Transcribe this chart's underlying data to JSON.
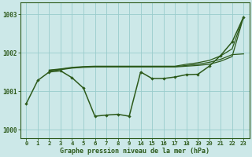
{
  "bg_color": "#cce8e8",
  "grid_color": "#99cccc",
  "line_color": "#2d5a1b",
  "xlabel": "Graphe pression niveau de la mer (hPa)",
  "ylim": [
    999.78,
    1003.3
  ],
  "yticks": [
    1000,
    1001,
    1002,
    1003
  ],
  "xticks": [
    0,
    1,
    2,
    3,
    4,
    5,
    6,
    7,
    8,
    9,
    14,
    15,
    16,
    17,
    18,
    19,
    20,
    21,
    22,
    23
  ],
  "line1_x": [
    0,
    1,
    2,
    3,
    4,
    5,
    6,
    7,
    8,
    9,
    14,
    15,
    16,
    17,
    18,
    19,
    20,
    21,
    22,
    23
  ],
  "line1_y": [
    1000.68,
    1001.28,
    1001.5,
    1001.53,
    1001.35,
    1001.08,
    1000.35,
    1000.38,
    1000.4,
    1000.35,
    1001.5,
    1001.33,
    1001.33,
    1001.37,
    1001.43,
    1001.44,
    1001.65,
    1001.93,
    1002.28,
    1002.93
  ],
  "line2_x": [
    2,
    3,
    4,
    5,
    6,
    7,
    8,
    9,
    14,
    15,
    16,
    17,
    18,
    19,
    20,
    21,
    22,
    23
  ],
  "line2_y": [
    1001.52,
    1001.56,
    1001.6,
    1001.62,
    1001.63,
    1001.63,
    1001.63,
    1001.63,
    1001.63,
    1001.63,
    1001.63,
    1001.63,
    1001.65,
    1001.67,
    1001.7,
    1001.78,
    1001.9,
    1002.93
  ],
  "line3_x": [
    2,
    3,
    4,
    5,
    6,
    7,
    8,
    9,
    14,
    15,
    16,
    17,
    18,
    19,
    20,
    21,
    22,
    23
  ],
  "line3_y": [
    1001.54,
    1001.57,
    1001.61,
    1001.63,
    1001.64,
    1001.64,
    1001.64,
    1001.64,
    1001.64,
    1001.64,
    1001.64,
    1001.64,
    1001.67,
    1001.7,
    1001.75,
    1001.83,
    1001.95,
    1001.97
  ],
  "line4_x": [
    2,
    3,
    4,
    5,
    6,
    7,
    8,
    9,
    14,
    15,
    16,
    17,
    18,
    19,
    20,
    21,
    22,
    23
  ],
  "line4_y": [
    1001.55,
    1001.58,
    1001.62,
    1001.64,
    1001.65,
    1001.65,
    1001.65,
    1001.65,
    1001.65,
    1001.65,
    1001.65,
    1001.65,
    1001.7,
    1001.74,
    1001.8,
    1001.92,
    1002.1,
    1002.93
  ]
}
